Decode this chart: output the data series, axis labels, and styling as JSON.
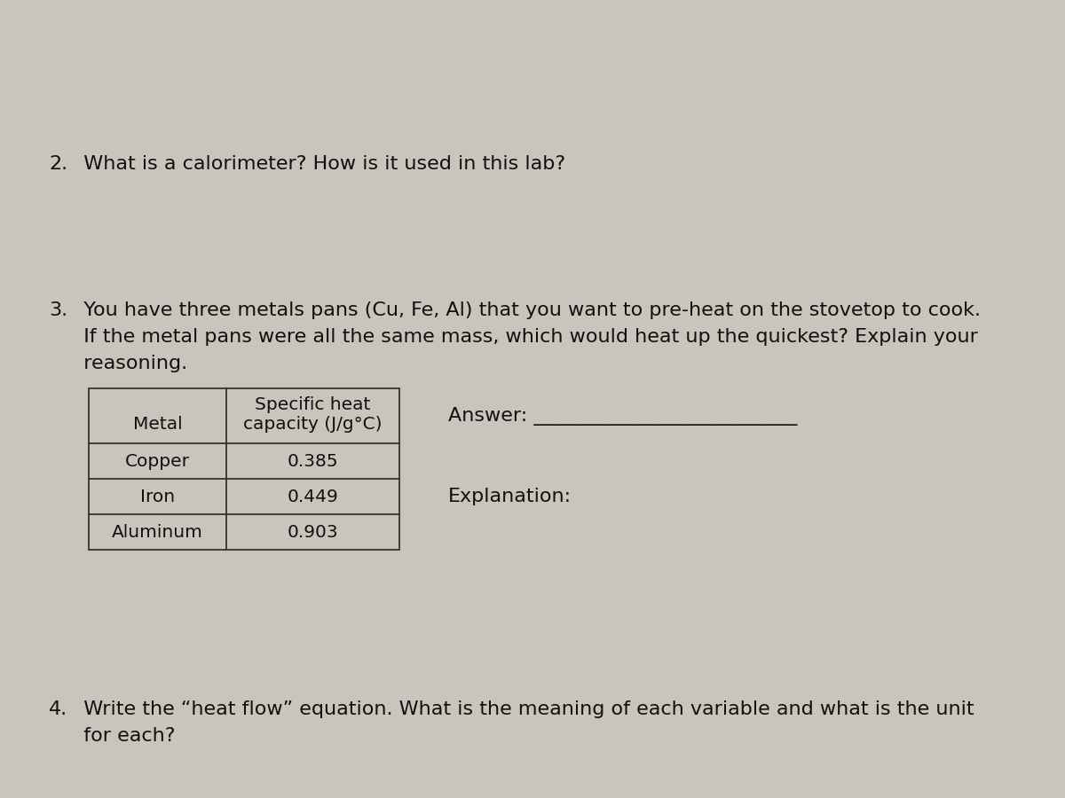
{
  "background_color": "#c9c4bc",
  "q2_text_num": "2.",
  "q2_text_body": "  What is a calorimeter? How is it used in this lab?",
  "q3_text_num": "3.",
  "q3_text_body1": "  You have three metals pans (Cu, Fe, Al) that you want to pre-heat on the stovetop to cook.",
  "q3_text_body2": "  If the metal pans were all the same mass, which would heat up the quickest? Explain your",
  "q3_text_body3": "  reasoning.",
  "q4_text_num": "4.",
  "q4_text_body1": "  Write the “heat flow” equation. What is the meaning of each variable and what is the unit",
  "q4_text_body2": "  for each?",
  "table_header_col1": "Metal",
  "table_header_col2_line1": "Specific heat",
  "table_header_col2_line2": "capacity (J/g°C)",
  "table_rows": [
    [
      "Copper",
      "0.385"
    ],
    [
      "Iron",
      "0.449"
    ],
    [
      "Aluminum",
      "0.903"
    ]
  ],
  "answer_label": "Answer: ___________________________",
  "explanation_label": "Explanation:",
  "font_size_main": 16,
  "font_size_table": 14.5,
  "text_color": "#111111",
  "table_border_color": "#333333",
  "fig_width": 12.0,
  "fig_height": 9.0,
  "dpi": 100
}
